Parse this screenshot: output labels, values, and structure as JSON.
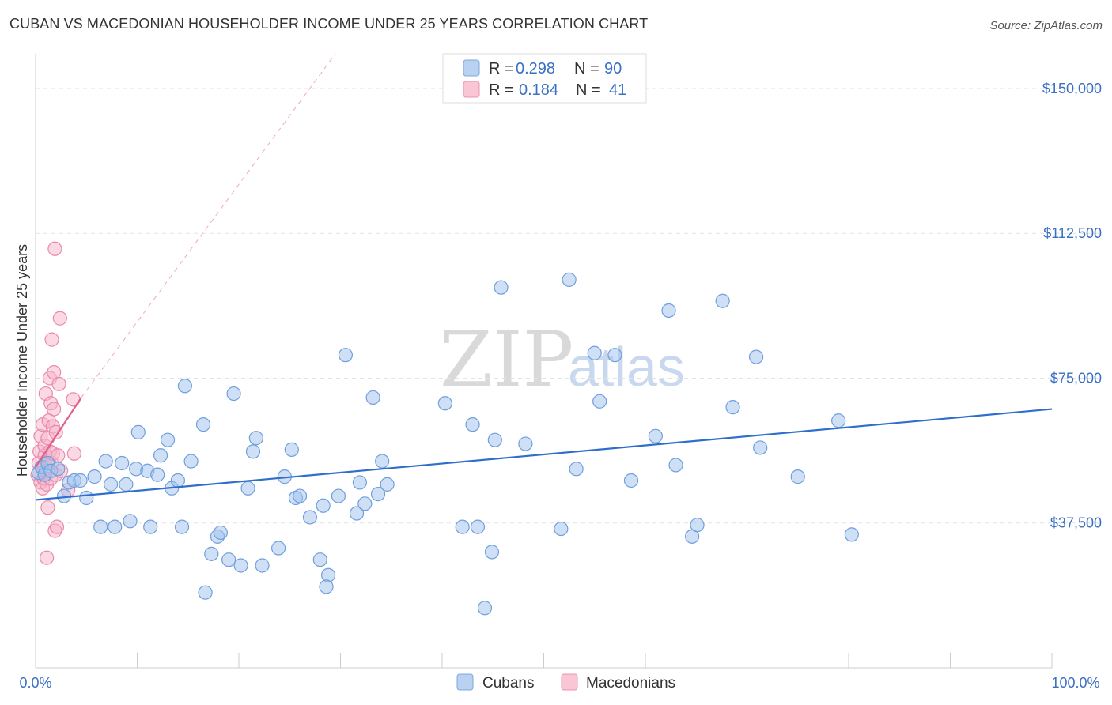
{
  "title": "CUBAN VS MACEDONIAN HOUSEHOLDER INCOME UNDER 25 YEARS CORRELATION CHART",
  "source": "Source: ZipAtlas.com",
  "watermark": {
    "zip": "ZIP",
    "atlas": "atlas"
  },
  "colors": {
    "cubans": "#9fc2ee",
    "cubans_stroke": "#6f9fdc",
    "cubans_line": "#2f6fcc",
    "macedonians": "#f6b3c9",
    "macedonians_stroke": "#ea8aaa",
    "macedonians_line": "#e0608a",
    "tick_text": "#3a6fc4",
    "grid": "#e3e3e3"
  },
  "legend": {
    "cubans": {
      "r_label": "R =",
      "r_value": "0.298",
      "n_label": "N =",
      "n_value": "90"
    },
    "macedonians": {
      "r_label": "R =",
      "r_value": "0.184",
      "n_label": "N =",
      "n_value": "41"
    }
  },
  "chart_data": {
    "type": "scatter",
    "title": "CUBAN VS MACEDONIAN HOUSEHOLDER INCOME UNDER 25 YEARS CORRELATION CHART",
    "xlabel": "",
    "ylabel": "Householder Income Under 25 years",
    "xlim": [
      0,
      100
    ],
    "ylim": [
      0,
      159000
    ],
    "x_tick_labels": [
      "0.0%",
      "100.0%"
    ],
    "y_ticks": [
      {
        "value": 37500,
        "label": "$37,500"
      },
      {
        "value": 75000,
        "label": "$75,000"
      },
      {
        "value": 112500,
        "label": "$112,500"
      },
      {
        "value": 150000,
        "label": "$150,000"
      }
    ],
    "series": [
      {
        "name": "Cubans",
        "r": 0.298,
        "n": 90,
        "trend": {
          "x0": 0,
          "y0": 43500,
          "x1": 100,
          "y1": 67000
        },
        "points": [
          [
            0.3,
            50500
          ],
          [
            0.6,
            52000
          ],
          [
            0.9,
            50000
          ],
          [
            1.2,
            53000
          ],
          [
            1.5,
            51000
          ],
          [
            2.2,
            51500
          ],
          [
            2.8,
            44500
          ],
          [
            3.3,
            48000
          ],
          [
            3.8,
            48500
          ],
          [
            4.4,
            48500
          ],
          [
            5.0,
            44000
          ],
          [
            5.8,
            49500
          ],
          [
            6.4,
            36500
          ],
          [
            6.9,
            53500
          ],
          [
            7.4,
            47500
          ],
          [
            7.8,
            36500
          ],
          [
            8.5,
            53000
          ],
          [
            8.9,
            47500
          ],
          [
            9.3,
            38000
          ],
          [
            9.9,
            51500
          ],
          [
            10.1,
            61000
          ],
          [
            11.0,
            51000
          ],
          [
            11.3,
            36500
          ],
          [
            12.0,
            50000
          ],
          [
            12.3,
            55000
          ],
          [
            13.0,
            59000
          ],
          [
            13.4,
            46500
          ],
          [
            14.0,
            48500
          ],
          [
            14.4,
            36500
          ],
          [
            14.7,
            73000
          ],
          [
            15.3,
            53500
          ],
          [
            16.5,
            63000
          ],
          [
            16.7,
            19500
          ],
          [
            17.3,
            29500
          ],
          [
            17.9,
            34000
          ],
          [
            18.2,
            35000
          ],
          [
            19.0,
            28000
          ],
          [
            19.5,
            71000
          ],
          [
            20.2,
            26500
          ],
          [
            20.9,
            46500
          ],
          [
            21.4,
            56000
          ],
          [
            21.7,
            59500
          ],
          [
            22.3,
            26500
          ],
          [
            23.9,
            31000
          ],
          [
            24.5,
            49500
          ],
          [
            25.2,
            56500
          ],
          [
            25.6,
            44000
          ],
          [
            26.0,
            44500
          ],
          [
            27.0,
            39000
          ],
          [
            28.0,
            28000
          ],
          [
            28.3,
            42000
          ],
          [
            28.8,
            24000
          ],
          [
            28.6,
            21000
          ],
          [
            29.8,
            44500
          ],
          [
            30.5,
            81000
          ],
          [
            31.6,
            40000
          ],
          [
            31.9,
            48000
          ],
          [
            32.4,
            42500
          ],
          [
            33.2,
            70000
          ],
          [
            33.7,
            45000
          ],
          [
            34.1,
            53500
          ],
          [
            34.6,
            47500
          ],
          [
            40.3,
            68500
          ],
          [
            42.0,
            36500
          ],
          [
            43.0,
            63000
          ],
          [
            43.5,
            36500
          ],
          [
            44.2,
            15500
          ],
          [
            44.9,
            30000
          ],
          [
            45.2,
            59000
          ],
          [
            45.8,
            98500
          ],
          [
            48.2,
            58000
          ],
          [
            51.7,
            36000
          ],
          [
            52.5,
            100500
          ],
          [
            53.2,
            51500
          ],
          [
            55.0,
            81500
          ],
          [
            55.5,
            69000
          ],
          [
            57.0,
            81000
          ],
          [
            58.6,
            48500
          ],
          [
            61.0,
            60000
          ],
          [
            62.3,
            92500
          ],
          [
            63.0,
            52500
          ],
          [
            64.6,
            34000
          ],
          [
            65.1,
            37000
          ],
          [
            67.6,
            95000
          ],
          [
            68.6,
            67500
          ],
          [
            70.9,
            80500
          ],
          [
            71.3,
            57000
          ],
          [
            75.0,
            49500
          ],
          [
            79.0,
            64000
          ],
          [
            80.3,
            34500
          ]
        ]
      },
      {
        "name": "Macedonians",
        "r": 0.184,
        "n": 41,
        "trend": {
          "x0": 0,
          "y0": 52000,
          "x1": 4.5,
          "y1": 70000
        },
        "trend_dashed_to": {
          "x": 29.5,
          "y": 159000
        },
        "points": [
          [
            0.2,
            50000
          ],
          [
            0.3,
            53000
          ],
          [
            0.4,
            56000
          ],
          [
            0.5,
            48000
          ],
          [
            0.5,
            60000
          ],
          [
            0.6,
            52000
          ],
          [
            0.7,
            46500
          ],
          [
            0.7,
            63000
          ],
          [
            0.8,
            49000
          ],
          [
            0.9,
            55000
          ],
          [
            0.9,
            57500
          ],
          [
            1.0,
            51000
          ],
          [
            1.0,
            71000
          ],
          [
            1.1,
            28500
          ],
          [
            1.1,
            47500
          ],
          [
            1.2,
            41500
          ],
          [
            1.2,
            59500
          ],
          [
            1.3,
            53500
          ],
          [
            1.3,
            64000
          ],
          [
            1.4,
            56000
          ],
          [
            1.4,
            75000
          ],
          [
            1.5,
            49000
          ],
          [
            1.5,
            68500
          ],
          [
            1.6,
            85000
          ],
          [
            1.6,
            53000
          ],
          [
            1.7,
            62500
          ],
          [
            1.7,
            55500
          ],
          [
            1.8,
            67000
          ],
          [
            1.8,
            76500
          ],
          [
            1.9,
            35500
          ],
          [
            1.9,
            108500
          ],
          [
            2.0,
            50000
          ],
          [
            2.0,
            61000
          ],
          [
            2.1,
            36500
          ],
          [
            2.2,
            55000
          ],
          [
            2.3,
            73500
          ],
          [
            2.4,
            90500
          ],
          [
            2.5,
            51000
          ],
          [
            3.2,
            46000
          ],
          [
            3.7,
            69500
          ],
          [
            3.8,
            55500
          ]
        ]
      }
    ],
    "legend": [
      {
        "name": "Cubans",
        "r": 0.298,
        "n": 90
      },
      {
        "name": "Macedonians",
        "r": 0.184,
        "n": 41
      }
    ]
  }
}
